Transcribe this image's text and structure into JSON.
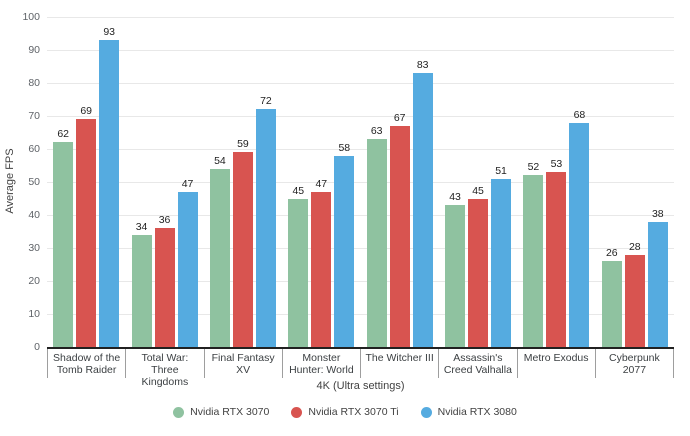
{
  "chart_data": {
    "type": "bar",
    "title": "",
    "categories": [
      "Shadow of the Tomb Raider",
      "Total War: Three Kingdoms",
      "Final Fantasy XV",
      "Monster Hunter: World",
      "The Witcher III",
      "Assassin's Creed Valhalla",
      "Metro Exodus",
      "Cyberpunk 2077"
    ],
    "series": [
      {
        "name": "Nvidia RTX 3070",
        "color": "#8fc2a0",
        "values": [
          62,
          34,
          54,
          45,
          63,
          43,
          52,
          26
        ]
      },
      {
        "name": "Nvidia RTX 3070 Ti",
        "color": "#d85450",
        "values": [
          69,
          36,
          59,
          47,
          67,
          45,
          53,
          28
        ]
      },
      {
        "name": "Nvidia RTX 3080",
        "color": "#55abe0",
        "values": [
          93,
          47,
          72,
          58,
          83,
          51,
          68,
          38
        ]
      }
    ],
    "xlabel": "4K (Ultra settings)",
    "ylabel": "Average FPS",
    "ylim": [
      0,
      100
    ],
    "ytick_step": 10,
    "grid": true,
    "legend_position": "bottom"
  },
  "colors": {
    "background": "#ffffff",
    "gridline": "#e8e8e8",
    "axis_line": "#212121",
    "separator": "#9e9e9e",
    "tick_label": "#5f6368",
    "value_label": "#1f1f1f",
    "category_label": "#3c4043"
  }
}
